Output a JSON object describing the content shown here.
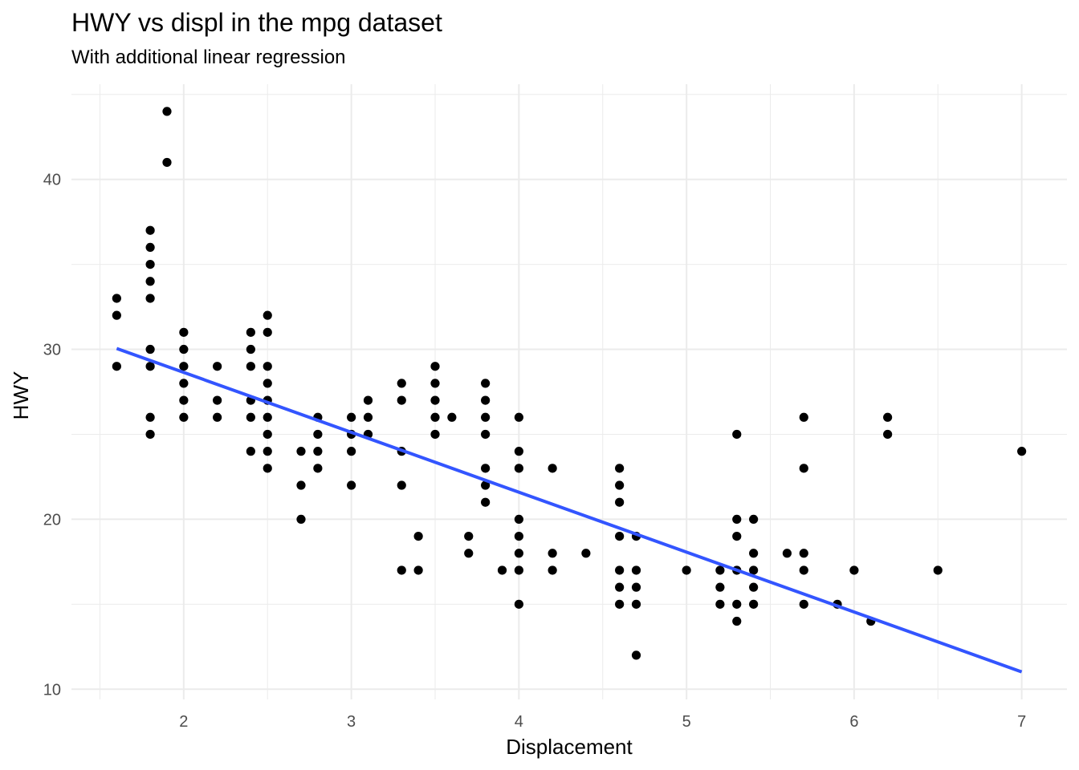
{
  "chart_data": {
    "type": "scatter",
    "title": "HWY vs displ in the mpg dataset",
    "subtitle": "With additional linear regression",
    "xlabel": "Displacement",
    "ylabel": "HWY",
    "xlim": [
      1.33,
      7.27
    ],
    "ylim": [
      9.4,
      45.6
    ],
    "x_ticks": [
      2,
      3,
      4,
      5,
      6,
      7
    ],
    "y_ticks": [
      10,
      20,
      30,
      40
    ],
    "grid": true,
    "colors": {
      "points": "#000000",
      "regression": "#3355ff",
      "grid": "#ebebeb"
    },
    "points": [
      [
        1.6,
        33
      ],
      [
        1.6,
        32
      ],
      [
        1.6,
        29
      ],
      [
        1.8,
        37
      ],
      [
        1.8,
        36
      ],
      [
        1.8,
        35
      ],
      [
        1.8,
        34
      ],
      [
        1.8,
        33
      ],
      [
        1.8,
        30
      ],
      [
        1.8,
        29
      ],
      [
        1.8,
        26
      ],
      [
        1.8,
        25
      ],
      [
        1.9,
        44
      ],
      [
        1.9,
        41
      ],
      [
        2.0,
        31
      ],
      [
        2.0,
        30
      ],
      [
        2.0,
        29
      ],
      [
        2.0,
        28
      ],
      [
        2.0,
        27
      ],
      [
        2.0,
        26
      ],
      [
        2.2,
        29
      ],
      [
        2.2,
        27
      ],
      [
        2.2,
        26
      ],
      [
        2.4,
        31
      ],
      [
        2.4,
        30
      ],
      [
        2.4,
        29
      ],
      [
        2.4,
        27
      ],
      [
        2.4,
        26
      ],
      [
        2.4,
        24
      ],
      [
        2.5,
        32
      ],
      [
        2.5,
        31
      ],
      [
        2.5,
        29
      ],
      [
        2.5,
        28
      ],
      [
        2.5,
        27
      ],
      [
        2.5,
        26
      ],
      [
        2.5,
        25
      ],
      [
        2.5,
        24
      ],
      [
        2.5,
        23
      ],
      [
        2.7,
        24
      ],
      [
        2.7,
        22
      ],
      [
        2.7,
        20
      ],
      [
        2.8,
        26
      ],
      [
        2.8,
        25
      ],
      [
        2.8,
        24
      ],
      [
        2.8,
        23
      ],
      [
        3.0,
        26
      ],
      [
        3.0,
        25
      ],
      [
        3.0,
        24
      ],
      [
        3.0,
        22
      ],
      [
        3.1,
        27
      ],
      [
        3.1,
        26
      ],
      [
        3.1,
        25
      ],
      [
        3.3,
        28
      ],
      [
        3.3,
        27
      ],
      [
        3.3,
        24
      ],
      [
        3.3,
        22
      ],
      [
        3.3,
        17
      ],
      [
        3.4,
        19
      ],
      [
        3.4,
        17
      ],
      [
        3.5,
        29
      ],
      [
        3.5,
        28
      ],
      [
        3.5,
        27
      ],
      [
        3.5,
        26
      ],
      [
        3.5,
        25
      ],
      [
        3.6,
        26
      ],
      [
        3.7,
        19
      ],
      [
        3.7,
        18
      ],
      [
        3.8,
        28
      ],
      [
        3.8,
        27
      ],
      [
        3.8,
        26
      ],
      [
        3.8,
        25
      ],
      [
        3.8,
        23
      ],
      [
        3.8,
        22
      ],
      [
        3.8,
        21
      ],
      [
        3.9,
        17
      ],
      [
        4.0,
        26
      ],
      [
        4.0,
        24
      ],
      [
        4.0,
        23
      ],
      [
        4.0,
        20
      ],
      [
        4.0,
        19
      ],
      [
        4.0,
        18
      ],
      [
        4.0,
        17
      ],
      [
        4.0,
        15
      ],
      [
        4.2,
        23
      ],
      [
        4.2,
        18
      ],
      [
        4.2,
        17
      ],
      [
        4.4,
        18
      ],
      [
        4.6,
        23
      ],
      [
        4.6,
        22
      ],
      [
        4.6,
        21
      ],
      [
        4.6,
        19
      ],
      [
        4.6,
        17
      ],
      [
        4.6,
        16
      ],
      [
        4.6,
        15
      ],
      [
        4.7,
        19
      ],
      [
        4.7,
        17
      ],
      [
        4.7,
        16
      ],
      [
        4.7,
        15
      ],
      [
        4.7,
        12
      ],
      [
        5.0,
        17
      ],
      [
        5.2,
        17
      ],
      [
        5.2,
        16
      ],
      [
        5.2,
        15
      ],
      [
        5.3,
        25
      ],
      [
        5.3,
        20
      ],
      [
        5.3,
        19
      ],
      [
        5.3,
        17
      ],
      [
        5.3,
        15
      ],
      [
        5.3,
        14
      ],
      [
        5.4,
        20
      ],
      [
        5.4,
        18
      ],
      [
        5.4,
        17
      ],
      [
        5.4,
        16
      ],
      [
        5.4,
        15
      ],
      [
        5.6,
        18
      ],
      [
        5.7,
        26
      ],
      [
        5.7,
        23
      ],
      [
        5.7,
        18
      ],
      [
        5.7,
        17
      ],
      [
        5.7,
        15
      ],
      [
        5.9,
        15
      ],
      [
        6.0,
        17
      ],
      [
        6.1,
        14
      ],
      [
        6.2,
        26
      ],
      [
        6.2,
        25
      ],
      [
        6.5,
        17
      ],
      [
        7.0,
        24
      ]
    ],
    "regression": {
      "x": [
        1.6,
        7.0
      ],
      "y": [
        30.05,
        11.02
      ]
    }
  }
}
